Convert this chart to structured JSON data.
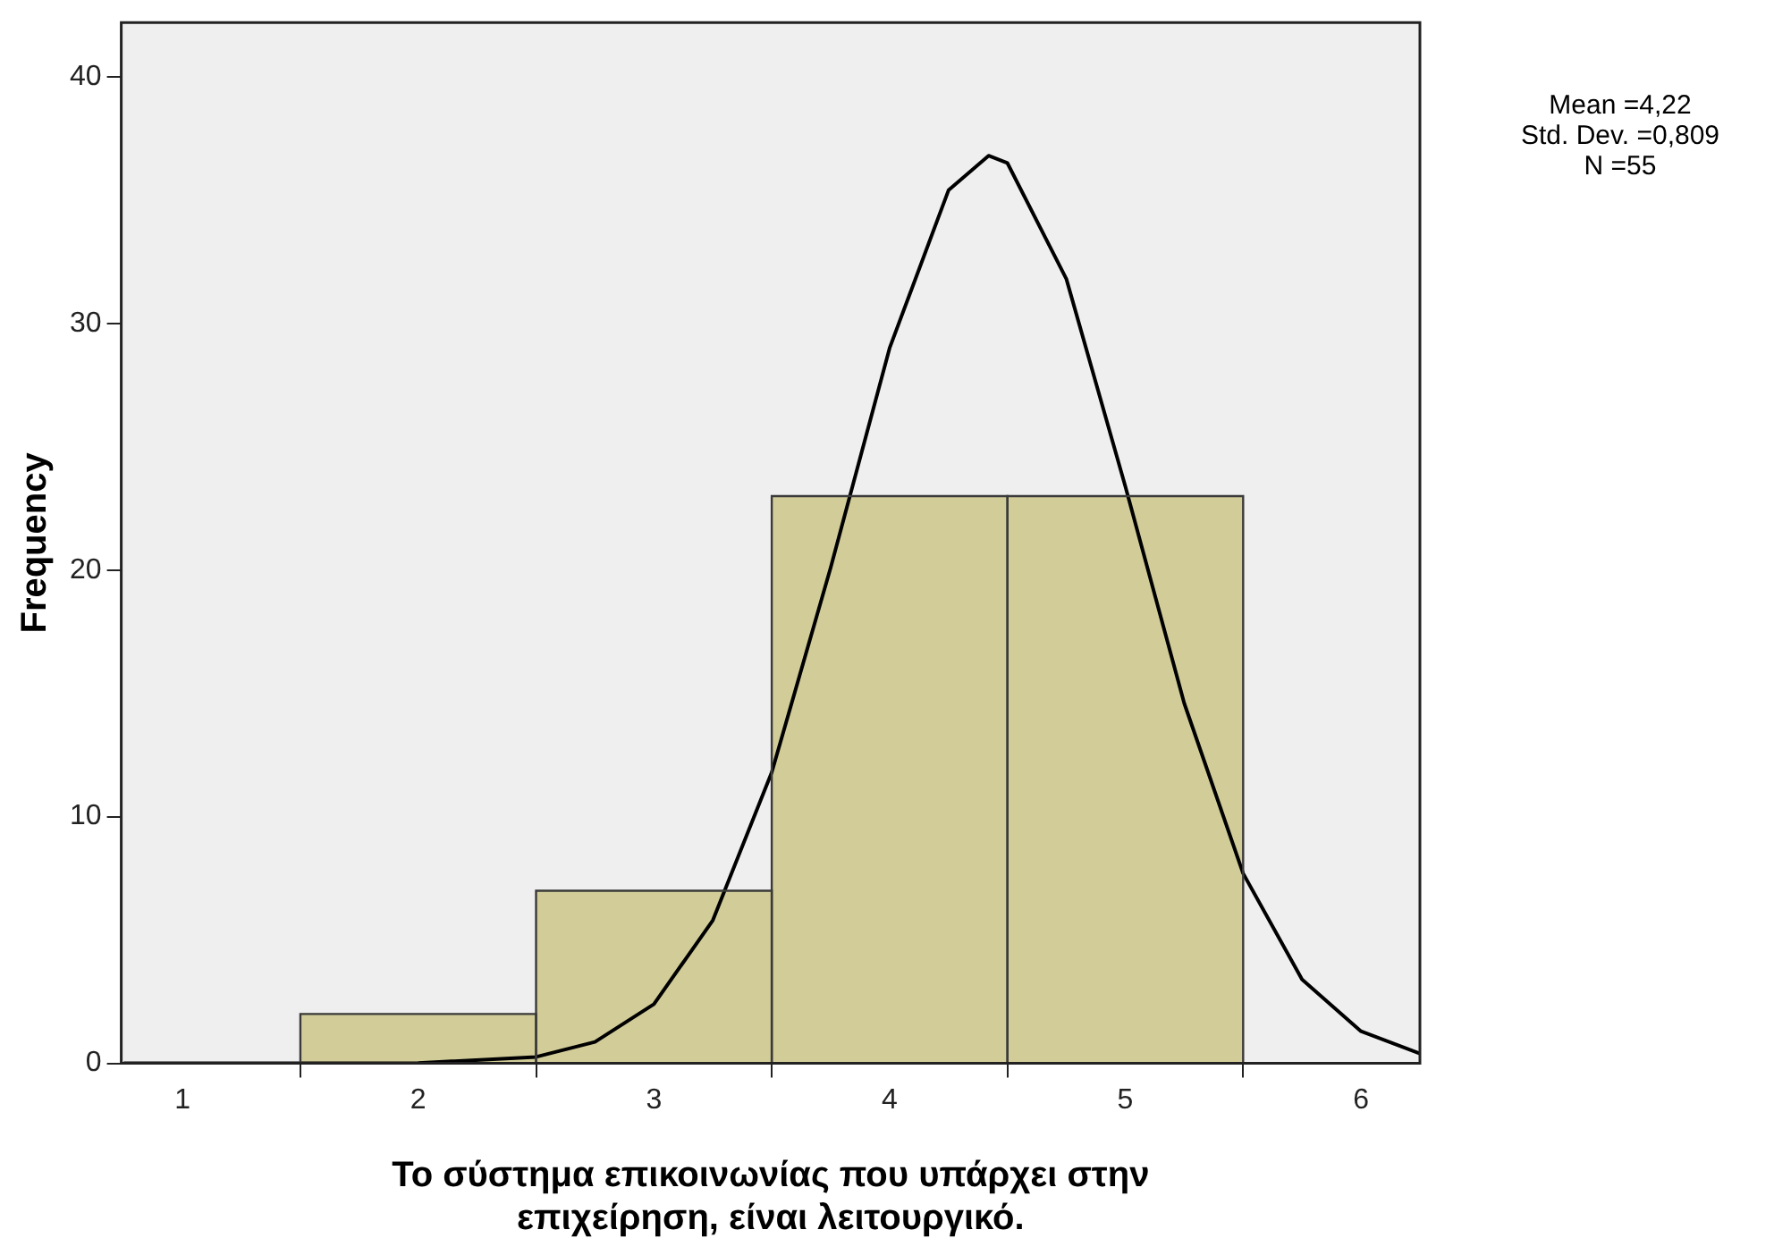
{
  "chart_data": {
    "type": "histogram",
    "xlabel": "Το σύστημα επικοινωνίας που υπάρχει στην επιχείρηση, είναι λειτουργικό.",
    "ylabel": "Frequency",
    "annotations": [
      "Mean =4,22",
      "Std. Dev. =0,809",
      "N =55"
    ],
    "series": [
      {
        "bins": [
          1.5,
          2.5,
          3.5,
          4.5,
          5.5
        ],
        "values": [
          2,
          7,
          23,
          23
        ],
        "color": "#d2cd98"
      },
      {
        "type": "line",
        "color": "#000000",
        "x": [
          0.75,
          1.5,
          2.0,
          2.5,
          2.75,
          3.0,
          3.25,
          3.5,
          3.75,
          4.0,
          4.25,
          4.42,
          4.5,
          4.75,
          5.0,
          5.25,
          5.5,
          5.75,
          6.0,
          6.25
        ],
        "values": [
          0,
          0,
          0.01,
          0.26,
          0.87,
          2.4,
          5.8,
          11.8,
          20.1,
          29.0,
          35.4,
          36.8,
          36.5,
          31.8,
          23.4,
          14.6,
          7.7,
          3.4,
          1.3,
          0.4
        ]
      }
    ],
    "xlim": [
      0.74,
      6.25
    ],
    "xticks": [
      1,
      2,
      3,
      4,
      5,
      6
    ],
    "ylim": [
      0,
      42.2
    ],
    "yticks": [
      0,
      10,
      20,
      30,
      40
    ],
    "legend": false
  }
}
